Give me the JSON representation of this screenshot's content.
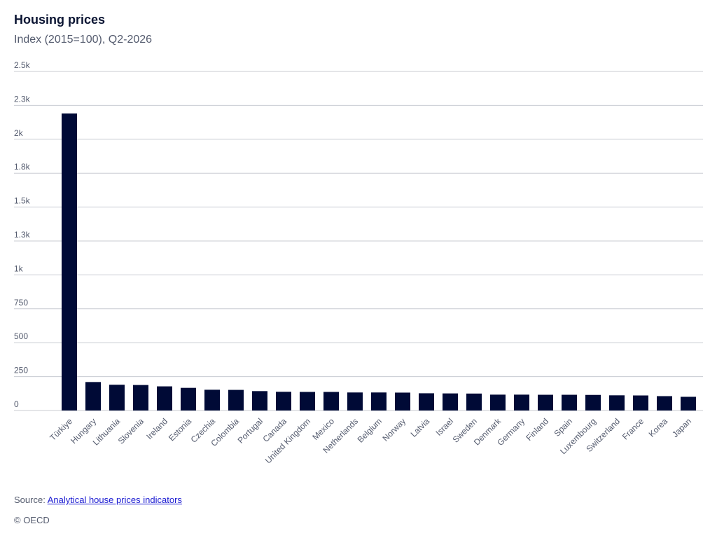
{
  "header": {
    "title": "Housing prices",
    "subtitle": "Index (2015=100), Q2-2026"
  },
  "footer": {
    "source_prefix": "Source: ",
    "source_link": "Analytical house prices indicators",
    "copyright": "© OECD"
  },
  "colors": {
    "bar": "#000a36",
    "grid": "#c8cbd2",
    "tick_text": "#545b6e"
  },
  "chart_data": {
    "type": "bar",
    "title": "Housing prices",
    "subtitle": "Index (2015=100), Q2-2026",
    "xlabel": "",
    "ylabel": "",
    "ylim": [
      0,
      2500
    ],
    "yticks": [
      {
        "value": 0,
        "label": "0"
      },
      {
        "value": 250,
        "label": "250"
      },
      {
        "value": 500,
        "label": "500"
      },
      {
        "value": 750,
        "label": "750"
      },
      {
        "value": 1000,
        "label": "1k"
      },
      {
        "value": 1250,
        "label": "1.3k"
      },
      {
        "value": 1500,
        "label": "1.5k"
      },
      {
        "value": 1750,
        "label": "1.8k"
      },
      {
        "value": 2000,
        "label": "2k"
      },
      {
        "value": 2250,
        "label": "2.3k"
      },
      {
        "value": 2500,
        "label": "2.5k"
      }
    ],
    "grid": true,
    "legend": "none",
    "categories": [
      "Türkiye",
      "Hungary",
      "Lithuania",
      "Slovenia",
      "Ireland",
      "Estonia",
      "Czechia",
      "Colombia",
      "Portugal",
      "Canada",
      "United Kingdom",
      "Mexico",
      "Netherlands",
      "Belgium",
      "Norway",
      "Latvia",
      "Israel",
      "Sweden",
      "Denmark",
      "Germany",
      "Finland",
      "Spain",
      "Luxembourg",
      "Switzerland",
      "France",
      "Korea",
      "Japan"
    ],
    "values": [
      2190,
      210,
      190,
      188,
      178,
      167,
      153,
      152,
      143,
      138,
      137,
      137,
      133,
      133,
      132,
      127,
      126,
      125,
      117,
      117,
      116,
      116,
      115,
      112,
      111,
      106,
      101
    ]
  }
}
